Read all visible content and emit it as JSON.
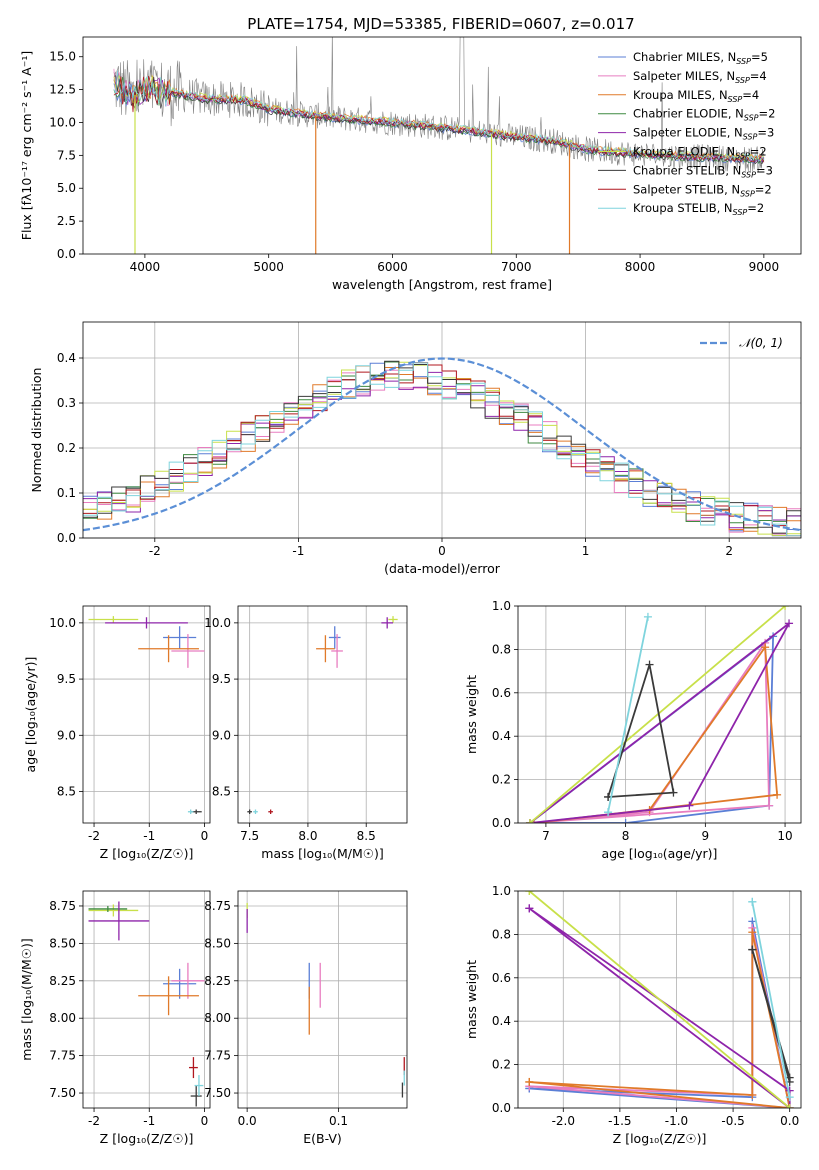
{
  "figure_title": "PLATE=1754, MJD=53385, FIBERID=0607, z=0.017",
  "colors": {
    "chabrier_miles": "#5b7fd6",
    "salpeter_miles": "#e87dc0",
    "kroupa_miles": "#e07a2a",
    "chabrier_elodie": "#3f8a40",
    "salpeter_elodie": "#8e24aa",
    "kroupa_elodie": "#c8e04a",
    "chabrier_stelib": "#3a3a3a",
    "salpeter_stelib": "#b0171f",
    "kroupa_stelib": "#7fd4dd",
    "data": "#808080",
    "normal": "#5b8fd6",
    "grid": "#b0b0b0"
  },
  "chart_data": [
    {
      "type": "line",
      "panel": "spectrum",
      "title": "PLATE=1754, MJD=53385, FIBERID=0607, z=0.017",
      "xlabel": "wavelength [Angstrom, rest frame]",
      "ylabel": "Flux [fλ10⁻¹⁷ erg cm⁻² s⁻¹ A⁻¹]",
      "xlim": [
        3500,
        9300
      ],
      "ylim": [
        0,
        16.5
      ],
      "xticks": [
        4000,
        5000,
        6000,
        7000,
        8000,
        9000
      ],
      "yticks": [
        0.0,
        2.5,
        5.0,
        7.5,
        10.0,
        12.5,
        15.0
      ],
      "legend_position": "top-right",
      "legend": [
        "Chabrier MILES, N$_{SSP}$=5",
        "Salpeter MILES, N$_{SSP}$=4",
        "Kroupa MILES, N$_{SSP}$=4",
        "Chabrier ELODIE, N$_{SSP}$=2",
        "Salpeter ELODIE, N$_{SSP}$=3",
        "Kroupa ELODIE, N$_{SSP}$=2",
        "Chabrier STELIB, N$_{SSP}$=3",
        "Salpeter STELIB, N$_{SSP}$=2",
        "Kroupa STELIB, N$_{SSP}$=2"
      ],
      "legend_display": [
        {
          "pre": "Chabrier MILES, N",
          "sub": "SSP",
          "post": "=5"
        },
        {
          "pre": "Salpeter MILES, N",
          "sub": "SSP",
          "post": "=4"
        },
        {
          "pre": "Kroupa MILES, N",
          "sub": "SSP",
          "post": "=4"
        },
        {
          "pre": "Chabrier ELODIE, N",
          "sub": "SSP",
          "post": "=2"
        },
        {
          "pre": "Salpeter ELODIE, N",
          "sub": "SSP",
          "post": "=3"
        },
        {
          "pre": "Kroupa ELODIE, N",
          "sub": "SSP",
          "post": "=2"
        },
        {
          "pre": "Chabrier STELIB, N",
          "sub": "SSP",
          "post": "=3"
        },
        {
          "pre": "Salpeter STELIB, N",
          "sub": "SSP",
          "post": "=2"
        },
        {
          "pre": "Kroupa STELIB, N",
          "sub": "SSP",
          "post": "=2"
        }
      ],
      "continuum": {
        "x": [
          3750,
          3900,
          4000,
          4200,
          4500,
          4800,
          5000,
          5300,
          5600,
          6000,
          6300,
          6600,
          7000,
          7300,
          7600,
          8000,
          8400,
          8800,
          9000
        ],
        "y": [
          13.0,
          12.0,
          12.5,
          12.3,
          11.8,
          11.7,
          11.0,
          10.6,
          10.3,
          10.0,
          9.7,
          9.4,
          8.9,
          8.6,
          7.9,
          7.6,
          7.4,
          7.25,
          7.2
        ]
      }
    },
    {
      "type": "bar",
      "panel": "residual_histogram",
      "xlabel": "(data-model)/error",
      "ylabel": "Normed distribution",
      "xlim": [
        -2.5,
        2.5
      ],
      "ylim": [
        0,
        0.48
      ],
      "xticks": [
        -2,
        -1,
        0,
        1,
        2
      ],
      "yticks": [
        0.0,
        0.1,
        0.2,
        0.3,
        0.4
      ],
      "normal_label": "𝒩(0, 1)",
      "legend_position": "top-right",
      "bin_width": 0.1
    },
    {
      "type": "scatter",
      "panel": "age_vs_Z",
      "xlabel": "Z [log₁₀(Z/Z☉)]",
      "ylabel": "age  [log₁₀(age/yr)]",
      "xlim": [
        -2.2,
        0.1
      ],
      "ylim": [
        8.22,
        10.15
      ],
      "xticks": [
        -2,
        -1,
        0
      ],
      "yticks": [
        8.5,
        9.0,
        9.5,
        10.0
      ],
      "points": [
        {
          "model": "chabrier_miles",
          "x": -0.45,
          "y": 9.87,
          "xerr": 0.3,
          "yerr": 0.1
        },
        {
          "model": "salpeter_miles",
          "x": -0.3,
          "y": 9.75,
          "xerr": 0.3,
          "yerr": 0.15
        },
        {
          "model": "kroupa_miles",
          "x": -0.65,
          "y": 9.77,
          "xerr": 0.55,
          "yerr": 0.12
        },
        {
          "model": "kroupa_elodie",
          "x": -1.65,
          "y": 10.03,
          "xerr": 0.45,
          "yerr": 0.03
        },
        {
          "model": "salpeter_elodie",
          "x": -1.05,
          "y": 10.0,
          "xerr": 0.75,
          "yerr": 0.05
        },
        {
          "model": "chabrier_stelib",
          "x": -0.15,
          "y": 8.32,
          "xerr": 0.1,
          "yerr": 0.02
        },
        {
          "model": "kroupa_stelib",
          "x": -0.25,
          "y": 8.32,
          "xerr": 0.05,
          "yerr": 0.02
        }
      ]
    },
    {
      "type": "scatter",
      "panel": "age_vs_mass",
      "xlabel": "mass [log₁₀(M/M☉)]",
      "xlim": [
        7.4,
        8.85
      ],
      "ylim": [
        8.22,
        10.15
      ],
      "xticks": [
        7.5,
        8.0,
        8.5
      ],
      "yticks": [
        8.5,
        9.0,
        9.5,
        10.0
      ],
      "points": [
        {
          "model": "chabrier_miles",
          "x": 8.23,
          "y": 9.87,
          "xerr": 0.05,
          "yerr": 0.1
        },
        {
          "model": "salpeter_miles",
          "x": 8.25,
          "y": 9.75,
          "xerr": 0.05,
          "yerr": 0.15
        },
        {
          "model": "kroupa_miles",
          "x": 8.15,
          "y": 9.77,
          "xerr": 0.08,
          "yerr": 0.12
        },
        {
          "model": "kroupa_elodie",
          "x": 8.73,
          "y": 10.03,
          "xerr": 0.04,
          "yerr": 0.03
        },
        {
          "model": "salpeter_elodie",
          "x": 8.68,
          "y": 10.0,
          "xerr": 0.05,
          "yerr": 0.05
        },
        {
          "model": "chabrier_stelib",
          "x": 7.5,
          "y": 8.32,
          "xerr": 0.02,
          "yerr": 0.02
        },
        {
          "model": "salpeter_stelib",
          "x": 7.68,
          "y": 8.32,
          "xerr": 0.02,
          "yerr": 0.02
        },
        {
          "model": "kroupa_stelib",
          "x": 7.55,
          "y": 8.32,
          "xerr": 0.02,
          "yerr": 0.02
        }
      ]
    },
    {
      "type": "line",
      "panel": "mass_weight_vs_age",
      "xlabel": "age  [log₁₀(age/yr)]",
      "ylabel": "mass weight",
      "xlim": [
        6.65,
        10.2
      ],
      "ylim": [
        0,
        1.0
      ],
      "xticks": [
        7,
        8,
        9,
        10
      ],
      "yticks": [
        0.0,
        0.2,
        0.4,
        0.6,
        0.8,
        1.0
      ],
      "series": [
        {
          "model": "chabrier_miles",
          "x": [
            6.8,
            8.0,
            9.8,
            9.85,
            6.8
          ],
          "y": [
            0.0,
            0.0,
            0.08,
            0.86,
            0.0
          ]
        },
        {
          "model": "salpeter_miles",
          "x": [
            6.8,
            8.3,
            9.75,
            9.8,
            6.8
          ],
          "y": [
            0.0,
            0.05,
            0.83,
            0.08,
            0.0
          ]
        },
        {
          "model": "kroupa_miles",
          "x": [
            6.85,
            8.3,
            9.75,
            9.9,
            6.85
          ],
          "y": [
            0.0,
            0.06,
            0.81,
            0.13,
            0.0
          ]
        },
        {
          "model": "salpeter_elodie",
          "x": [
            6.8,
            8.8,
            10.05,
            6.8
          ],
          "y": [
            0.0,
            0.08,
            0.92,
            0.0
          ]
        },
        {
          "model": "kroupa_elodie",
          "x": [
            6.8,
            10.0,
            6.8
          ],
          "y": [
            0.0,
            1.0,
            0.0
          ]
        },
        {
          "model": "chabrier_stelib",
          "x": [
            7.78,
            8.3,
            8.6,
            7.78
          ],
          "y": [
            0.12,
            0.73,
            0.14,
            0.12
          ]
        },
        {
          "model": "kroupa_stelib",
          "x": [
            7.78,
            8.28,
            7.78
          ],
          "y": [
            0.05,
            0.95,
            0.05
          ]
        }
      ]
    },
    {
      "type": "scatter",
      "panel": "mass_vs_Z",
      "xlabel": "Z [log₁₀(Z/Z☉)]",
      "ylabel": "mass [log₁₀(M/M☉)]",
      "xlim": [
        -2.2,
        0.1
      ],
      "ylim": [
        7.4,
        8.85
      ],
      "xticks": [
        -2,
        -1,
        0
      ],
      "yticks": [
        7.5,
        7.75,
        8.0,
        8.25,
        8.5,
        8.75
      ],
      "points": [
        {
          "model": "chabrier_miles",
          "x": -0.45,
          "y": 8.23,
          "xerr": 0.3,
          "yerr": 0.1
        },
        {
          "model": "salpeter_miles",
          "x": -0.3,
          "y": 8.25,
          "xerr": 0.3,
          "yerr": 0.12
        },
        {
          "model": "kroupa_miles",
          "x": -0.65,
          "y": 8.15,
          "xerr": 0.55,
          "yerr": 0.13
        },
        {
          "model": "kroupa_elodie",
          "x": -1.65,
          "y": 8.72,
          "xerr": 0.45,
          "yerr": 0.04
        },
        {
          "model": "chabrier_elodie",
          "x": -1.75,
          "y": 8.73,
          "xerr": 0.35,
          "yerr": 0.02
        },
        {
          "model": "salpeter_elodie",
          "x": -1.55,
          "y": 8.65,
          "xerr": 0.55,
          "yerr": 0.13
        },
        {
          "model": "chabrier_stelib",
          "x": -0.15,
          "y": 7.48,
          "xerr": 0.1,
          "yerr": 0.07
        },
        {
          "model": "salpeter_stelib",
          "x": -0.2,
          "y": 7.67,
          "xerr": 0.08,
          "yerr": 0.07
        },
        {
          "model": "kroupa_stelib",
          "x": -0.1,
          "y": 7.55,
          "xerr": 0.08,
          "yerr": 0.07
        }
      ]
    },
    {
      "type": "scatter",
      "panel": "mass_vs_ebv",
      "xlabel": "E(B-V)",
      "xlim": [
        -0.01,
        0.175
      ],
      "ylim": [
        7.4,
        8.85
      ],
      "xticks": [
        0.0,
        0.1
      ],
      "yticks": [
        7.5,
        7.75,
        8.0,
        8.25,
        8.5,
        8.75
      ],
      "points": [
        {
          "model": "chabrier_miles",
          "x": 0.068,
          "y": 8.25,
          "xerr": 0.0,
          "yerr": 0.12
        },
        {
          "model": "salpeter_miles",
          "x": 0.08,
          "y": 8.22,
          "xerr": 0.0,
          "yerr": 0.15
        },
        {
          "model": "kroupa_miles",
          "x": 0.068,
          "y": 8.05,
          "xerr": 0.0,
          "yerr": 0.16
        },
        {
          "model": "kroupa_elodie",
          "x": 0.0,
          "y": 8.72,
          "xerr": 0.0,
          "yerr": 0.05
        },
        {
          "model": "salpeter_elodie",
          "x": 0.0,
          "y": 8.65,
          "xerr": 0.0,
          "yerr": 0.08
        },
        {
          "model": "chabrier_stelib",
          "x": 0.17,
          "y": 7.52,
          "xerr": 0.0,
          "yerr": 0.05
        },
        {
          "model": "salpeter_stelib",
          "x": 0.172,
          "y": 7.68,
          "xerr": 0.0,
          "yerr": 0.06
        },
        {
          "model": "kroupa_stelib",
          "x": 0.172,
          "y": 7.6,
          "xerr": 0.0,
          "yerr": 0.05
        }
      ]
    },
    {
      "type": "line",
      "panel": "mass_weight_vs_Z",
      "xlabel": "Z [log₁₀(Z/Z☉)]",
      "ylabel": "mass weight",
      "xlim": [
        -2.4,
        0.1
      ],
      "ylim": [
        0,
        1.0
      ],
      "xticks": [
        -2.0,
        -1.5,
        -1.0,
        -0.5,
        0.0
      ],
      "yticks": [
        0.0,
        0.2,
        0.4,
        0.6,
        0.8,
        1.0
      ],
      "series": [
        {
          "model": "chabrier_miles",
          "x": [
            -2.3,
            -0.33,
            -0.33,
            0.0,
            -2.3
          ],
          "y": [
            0.09,
            0.05,
            0.86,
            0.0,
            0.09
          ]
        },
        {
          "model": "salpeter_miles",
          "x": [
            -2.3,
            -0.33,
            -0.33,
            0.0,
            -2.3
          ],
          "y": [
            0.1,
            0.06,
            0.83,
            0.0,
            0.1
          ]
        },
        {
          "model": "kroupa_miles",
          "x": [
            -2.3,
            -0.33,
            -0.33,
            0.0,
            -2.3
          ],
          "y": [
            0.12,
            0.06,
            0.81,
            0.0,
            0.12
          ]
        },
        {
          "model": "salpeter_elodie",
          "x": [
            -2.3,
            0.0,
            0.0,
            -2.3
          ],
          "y": [
            0.92,
            0.08,
            0.0,
            0.92
          ]
        },
        {
          "model": "kroupa_elodie",
          "x": [
            -2.3,
            0.0,
            -2.3
          ],
          "y": [
            1.0,
            0.0,
            1.0
          ]
        },
        {
          "model": "chabrier_stelib",
          "x": [
            -0.33,
            0.0,
            0.0,
            -0.33
          ],
          "y": [
            0.73,
            0.14,
            0.12,
            0.73
          ]
        },
        {
          "model": "kroupa_stelib",
          "x": [
            -0.33,
            0.0,
            -0.33
          ],
          "y": [
            0.95,
            0.05,
            0.95
          ]
        }
      ]
    }
  ]
}
